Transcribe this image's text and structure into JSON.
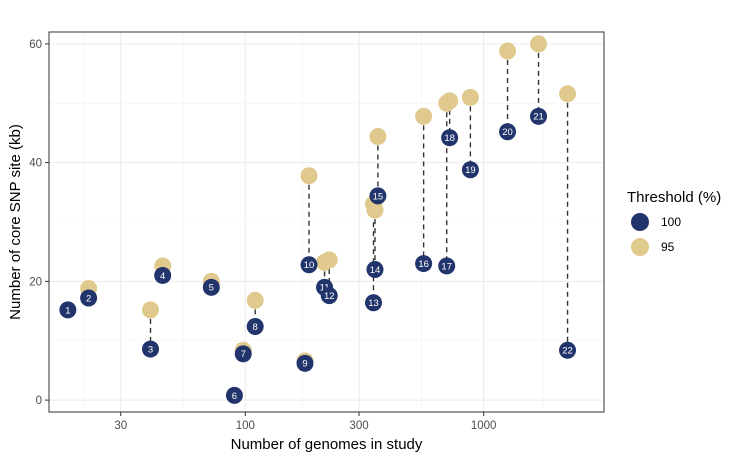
{
  "chart_data": {
    "type": "scatter",
    "xlabel": "Number of genomes in study",
    "ylabel": "Number of core SNP site (kb)",
    "x_scale": "log10",
    "xlim": [
      15,
      3200
    ],
    "ylim": [
      -2,
      62
    ],
    "x_ticks": [
      30,
      100,
      300,
      1000
    ],
    "x_tick_labels": [
      "30",
      "100",
      "300",
      "1000"
    ],
    "y_ticks": [
      0,
      20,
      40,
      60
    ],
    "y_tick_labels": [
      "0",
      "20",
      "40",
      "60"
    ],
    "grid": true,
    "legend": {
      "title": "Threshold (%)",
      "position": "right",
      "entries": [
        {
          "label": "100",
          "color": "#21346b"
        },
        {
          "label": "95",
          "color": "#e0c98d"
        }
      ]
    },
    "colors": {
      "threshold_100": "#21346b",
      "threshold_95": "#e0c98d",
      "connector": "#333333"
    },
    "studies": [
      {
        "label": "1",
        "n_genomes": 18,
        "core100": 15.2,
        "core95": null
      },
      {
        "label": "2",
        "n_genomes": 22,
        "core100": 17.2,
        "core95": 18.8
      },
      {
        "label": "3",
        "n_genomes": 40,
        "core100": 8.6,
        "core95": 15.2
      },
      {
        "label": "4",
        "n_genomes": 45,
        "core100": 21.0,
        "core95": 22.6
      },
      {
        "label": "5",
        "n_genomes": 72,
        "core100": 19.0,
        "core95": 20.0
      },
      {
        "label": "6",
        "n_genomes": 90,
        "core100": 0.8,
        "core95": null
      },
      {
        "label": "7",
        "n_genomes": 98,
        "core100": 7.8,
        "core95": 8.4
      },
      {
        "label": "8",
        "n_genomes": 110,
        "core100": 12.4,
        "core95": 16.8
      },
      {
        "label": "9",
        "n_genomes": 178,
        "core100": 6.2,
        "core95": 6.6
      },
      {
        "label": "10",
        "n_genomes": 185,
        "core100": 22.8,
        "core95": 37.8
      },
      {
        "label": "11",
        "n_genomes": 215,
        "core100": 19.0,
        "core95": 23.2
      },
      {
        "label": "12",
        "n_genomes": 225,
        "core100": 17.6,
        "core95": 23.6
      },
      {
        "label": "13",
        "n_genomes": 345,
        "core100": 16.4,
        "core95": 33.0
      },
      {
        "label": "14",
        "n_genomes": 350,
        "core100": 22.0,
        "core95": 32.0
      },
      {
        "label": "15",
        "n_genomes": 360,
        "core100": 34.4,
        "core95": 44.4
      },
      {
        "label": "16",
        "n_genomes": 560,
        "core100": 23.0,
        "core95": 47.8
      },
      {
        "label": "17",
        "n_genomes": 700,
        "core100": 22.6,
        "core95": 50.0
      },
      {
        "label": "18",
        "n_genomes": 720,
        "core100": 44.2,
        "core95": 50.4
      },
      {
        "label": "19",
        "n_genomes": 880,
        "core100": 38.8,
        "core95": 51.0
      },
      {
        "label": "20",
        "n_genomes": 1260,
        "core100": 45.2,
        "core95": 58.8
      },
      {
        "label": "21",
        "n_genomes": 1700,
        "core100": 47.8,
        "core95": 60.0
      },
      {
        "label": "22",
        "n_genomes": 2250,
        "core100": 8.4,
        "core95": 51.6
      }
    ]
  }
}
